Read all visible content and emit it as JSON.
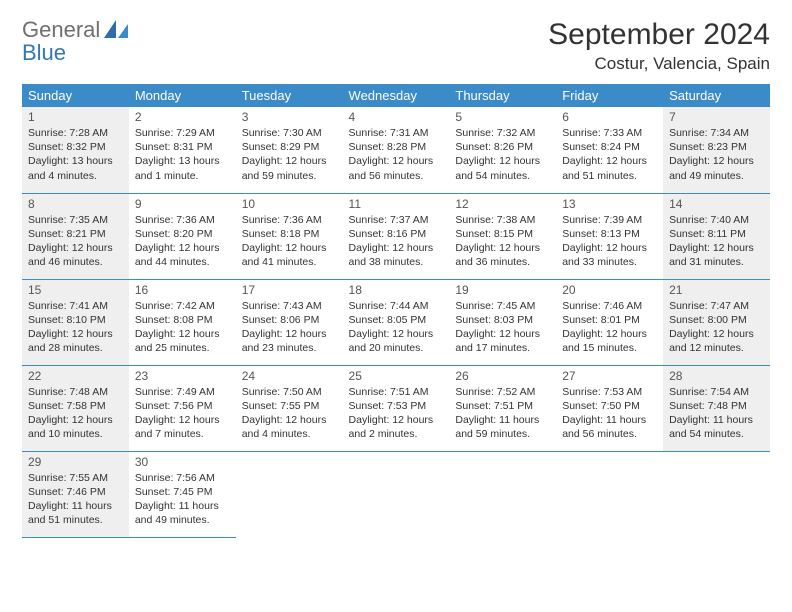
{
  "logo": {
    "line1": "General",
    "line2": "Blue"
  },
  "title": "September 2024",
  "location": "Costur, Valencia, Spain",
  "colors": {
    "header_bg": "#3b8bc9",
    "header_text": "#ffffff",
    "gray_cell": "#efefef",
    "border": "#3b8bc9",
    "logo_gray": "#6f6f6f",
    "logo_blue": "#3179b5"
  },
  "dow": [
    "Sunday",
    "Monday",
    "Tuesday",
    "Wednesday",
    "Thursday",
    "Friday",
    "Saturday"
  ],
  "weeks": [
    [
      {
        "n": "1",
        "gray": true,
        "sr": "Sunrise: 7:28 AM",
        "ss": "Sunset: 8:32 PM",
        "dl": "Daylight: 13 hours and 4 minutes."
      },
      {
        "n": "2",
        "gray": false,
        "sr": "Sunrise: 7:29 AM",
        "ss": "Sunset: 8:31 PM",
        "dl": "Daylight: 13 hours and 1 minute."
      },
      {
        "n": "3",
        "gray": false,
        "sr": "Sunrise: 7:30 AM",
        "ss": "Sunset: 8:29 PM",
        "dl": "Daylight: 12 hours and 59 minutes."
      },
      {
        "n": "4",
        "gray": false,
        "sr": "Sunrise: 7:31 AM",
        "ss": "Sunset: 8:28 PM",
        "dl": "Daylight: 12 hours and 56 minutes."
      },
      {
        "n": "5",
        "gray": false,
        "sr": "Sunrise: 7:32 AM",
        "ss": "Sunset: 8:26 PM",
        "dl": "Daylight: 12 hours and 54 minutes."
      },
      {
        "n": "6",
        "gray": false,
        "sr": "Sunrise: 7:33 AM",
        "ss": "Sunset: 8:24 PM",
        "dl": "Daylight: 12 hours and 51 minutes."
      },
      {
        "n": "7",
        "gray": true,
        "sr": "Sunrise: 7:34 AM",
        "ss": "Sunset: 8:23 PM",
        "dl": "Daylight: 12 hours and 49 minutes."
      }
    ],
    [
      {
        "n": "8",
        "gray": true,
        "sr": "Sunrise: 7:35 AM",
        "ss": "Sunset: 8:21 PM",
        "dl": "Daylight: 12 hours and 46 minutes."
      },
      {
        "n": "9",
        "gray": false,
        "sr": "Sunrise: 7:36 AM",
        "ss": "Sunset: 8:20 PM",
        "dl": "Daylight: 12 hours and 44 minutes."
      },
      {
        "n": "10",
        "gray": false,
        "sr": "Sunrise: 7:36 AM",
        "ss": "Sunset: 8:18 PM",
        "dl": "Daylight: 12 hours and 41 minutes."
      },
      {
        "n": "11",
        "gray": false,
        "sr": "Sunrise: 7:37 AM",
        "ss": "Sunset: 8:16 PM",
        "dl": "Daylight: 12 hours and 38 minutes."
      },
      {
        "n": "12",
        "gray": false,
        "sr": "Sunrise: 7:38 AM",
        "ss": "Sunset: 8:15 PM",
        "dl": "Daylight: 12 hours and 36 minutes."
      },
      {
        "n": "13",
        "gray": false,
        "sr": "Sunrise: 7:39 AM",
        "ss": "Sunset: 8:13 PM",
        "dl": "Daylight: 12 hours and 33 minutes."
      },
      {
        "n": "14",
        "gray": true,
        "sr": "Sunrise: 7:40 AM",
        "ss": "Sunset: 8:11 PM",
        "dl": "Daylight: 12 hours and 31 minutes."
      }
    ],
    [
      {
        "n": "15",
        "gray": true,
        "sr": "Sunrise: 7:41 AM",
        "ss": "Sunset: 8:10 PM",
        "dl": "Daylight: 12 hours and 28 minutes."
      },
      {
        "n": "16",
        "gray": false,
        "sr": "Sunrise: 7:42 AM",
        "ss": "Sunset: 8:08 PM",
        "dl": "Daylight: 12 hours and 25 minutes."
      },
      {
        "n": "17",
        "gray": false,
        "sr": "Sunrise: 7:43 AM",
        "ss": "Sunset: 8:06 PM",
        "dl": "Daylight: 12 hours and 23 minutes."
      },
      {
        "n": "18",
        "gray": false,
        "sr": "Sunrise: 7:44 AM",
        "ss": "Sunset: 8:05 PM",
        "dl": "Daylight: 12 hours and 20 minutes."
      },
      {
        "n": "19",
        "gray": false,
        "sr": "Sunrise: 7:45 AM",
        "ss": "Sunset: 8:03 PM",
        "dl": "Daylight: 12 hours and 17 minutes."
      },
      {
        "n": "20",
        "gray": false,
        "sr": "Sunrise: 7:46 AM",
        "ss": "Sunset: 8:01 PM",
        "dl": "Daylight: 12 hours and 15 minutes."
      },
      {
        "n": "21",
        "gray": true,
        "sr": "Sunrise: 7:47 AM",
        "ss": "Sunset: 8:00 PM",
        "dl": "Daylight: 12 hours and 12 minutes."
      }
    ],
    [
      {
        "n": "22",
        "gray": true,
        "sr": "Sunrise: 7:48 AM",
        "ss": "Sunset: 7:58 PM",
        "dl": "Daylight: 12 hours and 10 minutes."
      },
      {
        "n": "23",
        "gray": false,
        "sr": "Sunrise: 7:49 AM",
        "ss": "Sunset: 7:56 PM",
        "dl": "Daylight: 12 hours and 7 minutes."
      },
      {
        "n": "24",
        "gray": false,
        "sr": "Sunrise: 7:50 AM",
        "ss": "Sunset: 7:55 PM",
        "dl": "Daylight: 12 hours and 4 minutes."
      },
      {
        "n": "25",
        "gray": false,
        "sr": "Sunrise: 7:51 AM",
        "ss": "Sunset: 7:53 PM",
        "dl": "Daylight: 12 hours and 2 minutes."
      },
      {
        "n": "26",
        "gray": false,
        "sr": "Sunrise: 7:52 AM",
        "ss": "Sunset: 7:51 PM",
        "dl": "Daylight: 11 hours and 59 minutes."
      },
      {
        "n": "27",
        "gray": false,
        "sr": "Sunrise: 7:53 AM",
        "ss": "Sunset: 7:50 PM",
        "dl": "Daylight: 11 hours and 56 minutes."
      },
      {
        "n": "28",
        "gray": true,
        "sr": "Sunrise: 7:54 AM",
        "ss": "Sunset: 7:48 PM",
        "dl": "Daylight: 11 hours and 54 minutes."
      }
    ],
    [
      {
        "n": "29",
        "gray": true,
        "sr": "Sunrise: 7:55 AM",
        "ss": "Sunset: 7:46 PM",
        "dl": "Daylight: 11 hours and 51 minutes."
      },
      {
        "n": "30",
        "gray": false,
        "sr": "Sunrise: 7:56 AM",
        "ss": "Sunset: 7:45 PM",
        "dl": "Daylight: 11 hours and 49 minutes."
      },
      null,
      null,
      null,
      null,
      null
    ]
  ]
}
